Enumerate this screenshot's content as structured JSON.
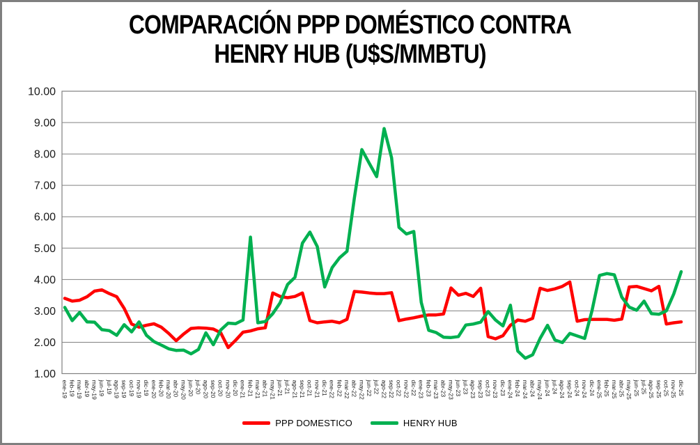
{
  "page": {
    "title_line1": "COMPARACIÓN PPP DOMÉSTICO CONTRA",
    "title_line2": "HENRY HUB (U$S/MMBTU)"
  },
  "legend": {
    "items": [
      {
        "label": "PPP DOMESTICO",
        "color": "#FF0000"
      },
      {
        "label": "HENRY HUB",
        "color": "#00B050"
      }
    ]
  },
  "axes": {
    "y_tick_labels": [
      "10.00",
      "9.00",
      "8.00",
      "7.00",
      "6.00",
      "5.00",
      "4.00",
      "3.00",
      "2.00",
      "1.00"
    ]
  },
  "chart_data": {
    "type": "line",
    "title": "COMPARACIÓN PPP DOMÉSTICO CONTRA HENRY HUB (U$S/MMBTU)",
    "xlabel": "",
    "ylabel": "",
    "ylim": [
      1,
      10
    ],
    "ytick_step": 1,
    "grid": true,
    "legend_position": "bottom",
    "x": [
      "ene-19",
      "feb-19",
      "mar-19",
      "abr-19",
      "may-19",
      "jun-19",
      "jul-19",
      "ago-19",
      "sep-19",
      "oct-19",
      "nov-19",
      "dic-19",
      "ene-20",
      "feb-20",
      "mar-20",
      "abr-20",
      "may-20",
      "jun-20",
      "jul-20",
      "ago-20",
      "sep-20",
      "oct-20",
      "nov-20",
      "dic-20",
      "ene-21",
      "feb-21",
      "mar-21",
      "abr-21",
      "may-21",
      "jun-21",
      "jul-21",
      "ago-21",
      "sep-21",
      "oct-21",
      "nov-21",
      "dic-21",
      "ene-22",
      "feb-22",
      "mar-22",
      "abr-22",
      "may-22",
      "jun-22",
      "jul-22",
      "ago-22",
      "sep-22",
      "oct-22",
      "nov-22",
      "dic-22",
      "ene-23",
      "feb-23",
      "mar-23",
      "abr-23",
      "may-23",
      "jun-23",
      "jul-23",
      "ago-23",
      "sep-23",
      "oct-23",
      "nov-23",
      "dic-23",
      "ene-24",
      "feb-24",
      "mar-24",
      "abr-24",
      "may-24",
      "jun-24",
      "jul-24",
      "ago-24",
      "sep-24",
      "oct-24",
      "nov-24",
      "dic-24",
      "ene-25",
      "feb-25",
      "mar-25",
      "abr-25",
      "may-25",
      "jun-25",
      "jul-25",
      "ago-25",
      "sep-25",
      "oct-25",
      "nov-25",
      "dic-25"
    ],
    "series": [
      {
        "name": "PPP DOMESTICO",
        "color": "#FF0000",
        "values": [
          3.4,
          3.31,
          3.34,
          3.45,
          3.63,
          3.67,
          3.55,
          3.45,
          3.08,
          2.58,
          2.48,
          2.54,
          2.59,
          2.48,
          2.28,
          2.05,
          2.26,
          2.44,
          2.46,
          2.45,
          2.42,
          2.3,
          1.83,
          2.06,
          2.32,
          2.36,
          2.43,
          2.46,
          3.57,
          3.46,
          3.42,
          3.46,
          3.57,
          2.69,
          2.62,
          2.65,
          2.67,
          2.62,
          2.73,
          3.62,
          3.6,
          3.57,
          3.55,
          3.55,
          3.58,
          2.69,
          2.74,
          2.78,
          2.83,
          2.87,
          2.87,
          2.9,
          3.73,
          3.5,
          3.56,
          3.46,
          3.72,
          2.18,
          2.11,
          2.21,
          2.54,
          2.71,
          2.67,
          2.76,
          3.72,
          3.65,
          3.7,
          3.78,
          3.92,
          2.67,
          2.72,
          2.73,
          2.73,
          2.73,
          2.7,
          2.74,
          3.76,
          3.78,
          3.71,
          3.64,
          3.78,
          2.58,
          2.62,
          2.65
        ]
      },
      {
        "name": "HENRY HUB",
        "color": "#00B050",
        "values": [
          3.11,
          2.69,
          2.95,
          2.65,
          2.64,
          2.4,
          2.37,
          2.22,
          2.56,
          2.33,
          2.65,
          2.22,
          2.02,
          1.91,
          1.79,
          1.74,
          1.75,
          1.63,
          1.77,
          2.3,
          1.92,
          2.39,
          2.61,
          2.59,
          2.71,
          5.35,
          2.62,
          2.66,
          2.91,
          3.26,
          3.84,
          4.07,
          5.16,
          5.51,
          5.05,
          3.76,
          4.38,
          4.69,
          4.9,
          6.6,
          8.14,
          7.7,
          7.28,
          8.81,
          7.88,
          5.66,
          5.45,
          5.53,
          3.27,
          2.38,
          2.31,
          2.16,
          2.15,
          2.18,
          2.55,
          2.58,
          2.64,
          2.98,
          2.71,
          2.52,
          3.18,
          1.72,
          1.49,
          1.6,
          2.12,
          2.54,
          2.07,
          1.99,
          2.28,
          2.2,
          2.12,
          3.01,
          4.13,
          4.19,
          4.15,
          3.44,
          3.12,
          3.02,
          3.31,
          2.91,
          2.89,
          3.0,
          3.54,
          4.25
        ]
      }
    ]
  },
  "style": {
    "gridline_color": "#808080",
    "frame_color": "#808080",
    "axis_text_color": "#1a1a1a",
    "series_stroke_width": 4.5
  }
}
